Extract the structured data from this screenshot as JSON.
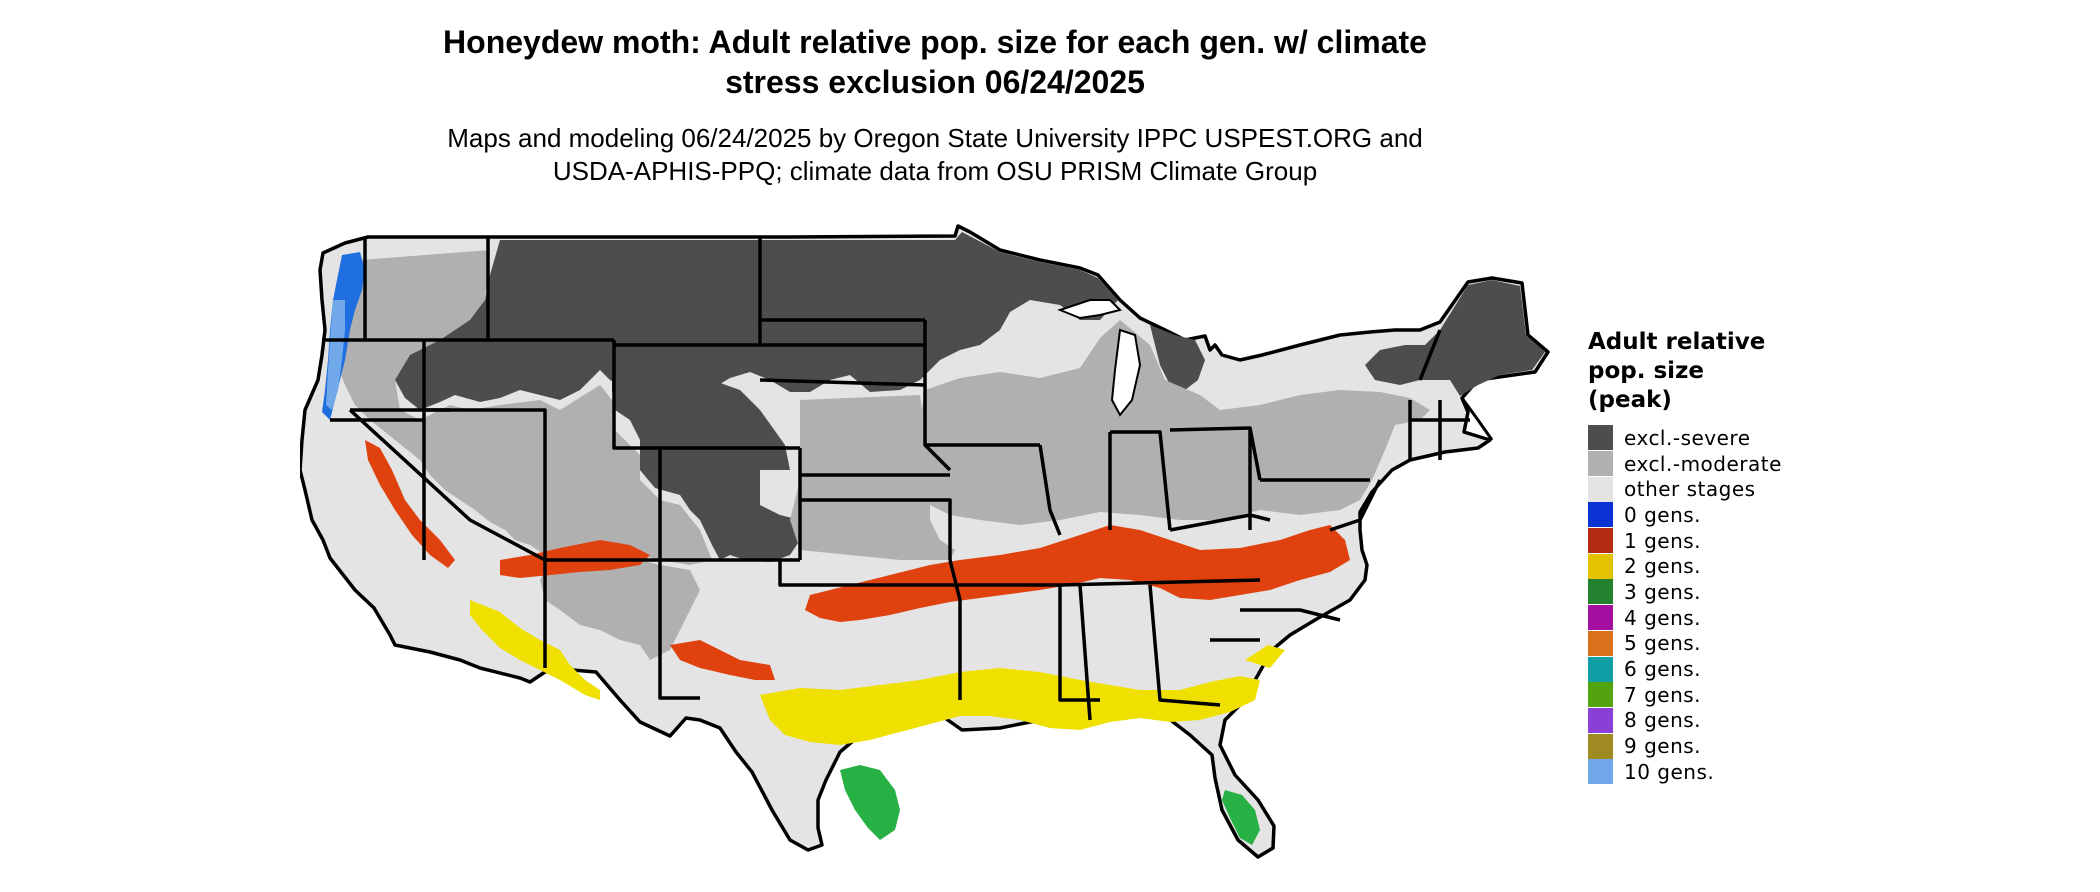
{
  "header": {
    "title_lines": [
      "Honeydew moth: Adult relative pop. size for each gen. w/ climate",
      "stress exclusion 06/24/2025"
    ],
    "subtitle_lines": [
      "Maps and modeling 06/24/2025 by Oregon State University IPPC USPEST.ORG and",
      "USDA-APHIS-PPQ; climate data from OSU PRISM Climate Group"
    ]
  },
  "legend": {
    "title_lines": [
      "Adult relative",
      "pop. size",
      "(peak)"
    ],
    "items": [
      {
        "label": "excl.-severe",
        "color": "#4d4d4d"
      },
      {
        "label": "excl.-moderate",
        "color": "#b0b0b0"
      },
      {
        "label": "other stages",
        "color": "#e4e4e4"
      },
      {
        "label": "0 gens.",
        "color": "#0b33d4"
      },
      {
        "label": "1 gens.",
        "color": "#b32b10"
      },
      {
        "label": "2 gens.",
        "color": "#e3c200"
      },
      {
        "label": "3 gens.",
        "color": "#23822d"
      },
      {
        "label": "4 gens.",
        "color": "#a3109f"
      },
      {
        "label": "5 gens.",
        "color": "#d9701a"
      },
      {
        "label": "6 gens.",
        "color": "#109fa5"
      },
      {
        "label": "7 gens.",
        "color": "#53a30f"
      },
      {
        "label": "8 gens.",
        "color": "#8a3fd6"
      },
      {
        "label": "9 gens.",
        "color": "#a08a22"
      },
      {
        "label": "10 gens.",
        "color": "#70a8ea"
      }
    ]
  }
}
